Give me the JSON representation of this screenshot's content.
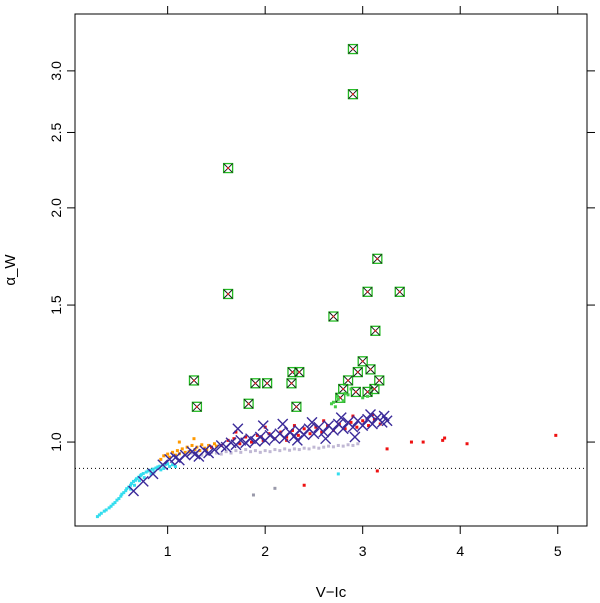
{
  "chart_data": {
    "type": "scatter",
    "title": "",
    "xlabel": "V−Ic",
    "ylabel": "α_W",
    "xlim": [
      0.05,
      5.3
    ],
    "ylim": [
      0.78,
      3.55
    ],
    "y_scale": "log",
    "x_ticks": [
      1,
      2,
      3,
      4,
      5
    ],
    "x_tick_labels": [
      "1",
      "2",
      "3",
      "4",
      "5"
    ],
    "y_ticks": [
      1.0,
      1.5,
      2.0,
      2.5,
      3.0
    ],
    "y_tick_labels": [
      "1.0",
      "1.5",
      "2.0",
      "2.5",
      "3.0"
    ],
    "reference_line": {
      "y": 0.925,
      "style": "dotted"
    },
    "grid": false,
    "legend": "none",
    "series": [
      {
        "color": "#33ddee",
        "marker": "small-square",
        "points": [
          [
            0.28,
            0.802
          ],
          [
            0.3,
            0.806
          ],
          [
            0.32,
            0.81
          ],
          [
            0.35,
            0.815
          ],
          [
            0.37,
            0.818
          ],
          [
            0.4,
            0.823
          ],
          [
            0.42,
            0.827
          ],
          [
            0.44,
            0.832
          ],
          [
            0.46,
            0.836
          ],
          [
            0.48,
            0.842
          ],
          [
            0.5,
            0.846
          ],
          [
            0.52,
            0.852
          ],
          [
            0.53,
            0.857
          ],
          [
            0.55,
            0.861
          ],
          [
            0.57,
            0.866
          ],
          [
            0.58,
            0.871
          ],
          [
            0.6,
            0.875
          ],
          [
            0.62,
            0.88
          ],
          [
            0.63,
            0.885
          ],
          [
            0.65,
            0.89
          ],
          [
            0.67,
            0.893
          ],
          [
            0.68,
            0.897
          ],
          [
            0.7,
            0.901
          ],
          [
            0.72,
            0.905
          ],
          [
            0.73,
            0.908
          ],
          [
            0.75,
            0.911
          ],
          [
            0.78,
            0.915
          ],
          [
            0.8,
            0.918
          ],
          [
            0.82,
            0.92
          ],
          [
            0.85,
            0.923
          ],
          [
            0.88,
            0.926
          ],
          [
            0.9,
            0.929
          ],
          [
            0.92,
            0.931
          ],
          [
            0.95,
            0.934
          ],
          [
            0.98,
            0.936
          ],
          [
            1.0,
            0.938
          ],
          [
            0.62,
            0.87
          ],
          [
            0.66,
            0.88
          ],
          [
            0.71,
            0.892
          ],
          [
            0.76,
            0.9
          ],
          [
            0.83,
            0.91
          ],
          [
            0.86,
            0.915
          ],
          [
            0.93,
            0.921
          ],
          [
            0.96,
            0.925
          ],
          [
            1.02,
            0.93
          ],
          [
            1.05,
            0.935
          ],
          [
            1.08,
            0.93
          ],
          [
            2.75,
            0.91
          ]
        ]
      },
      {
        "color": "#ff9900",
        "marker": "small-square",
        "points": [
          [
            0.93,
            0.95
          ],
          [
            0.96,
            0.96
          ],
          [
            1.0,
            0.965
          ],
          [
            1.02,
            0.956
          ],
          [
            1.05,
            0.97
          ],
          [
            1.08,
            0.962
          ],
          [
            1.1,
            0.975
          ],
          [
            1.12,
            0.966
          ],
          [
            1.15,
            0.98
          ],
          [
            1.18,
            0.97
          ],
          [
            1.2,
            0.985
          ],
          [
            1.22,
            0.972
          ],
          [
            1.25,
            0.99
          ],
          [
            1.28,
            0.978
          ],
          [
            1.3,
            0.985
          ],
          [
            1.33,
            0.975
          ],
          [
            1.35,
            0.992
          ],
          [
            1.38,
            0.982
          ],
          [
            1.4,
            0.978
          ],
          [
            1.42,
            0.99
          ],
          [
            1.45,
            0.985
          ],
          [
            1.48,
            0.995
          ],
          [
            1.5,
            0.988
          ],
          [
            1.27,
            1.01
          ],
          [
            1.12,
            1.0
          ]
        ]
      },
      {
        "color": "#c0b8d4",
        "marker": "small-square",
        "points": [
          [
            1.2,
            0.965
          ],
          [
            1.25,
            0.968
          ],
          [
            1.3,
            0.97
          ],
          [
            1.35,
            0.962
          ],
          [
            1.4,
            0.965
          ],
          [
            1.45,
            0.97
          ],
          [
            1.5,
            0.968
          ],
          [
            1.55,
            0.965
          ],
          [
            1.6,
            0.972
          ],
          [
            1.65,
            0.968
          ],
          [
            1.7,
            0.975
          ],
          [
            1.75,
            0.97
          ],
          [
            1.8,
            0.978
          ],
          [
            1.85,
            0.972
          ],
          [
            1.9,
            0.975
          ],
          [
            1.95,
            0.97
          ],
          [
            2.0,
            0.975
          ],
          [
            2.05,
            0.972
          ],
          [
            2.1,
            0.978
          ],
          [
            2.15,
            0.975
          ],
          [
            2.2,
            0.98
          ],
          [
            2.25,
            0.976
          ],
          [
            2.3,
            0.98
          ],
          [
            2.35,
            0.978
          ],
          [
            2.4,
            0.982
          ],
          [
            2.45,
            0.98
          ],
          [
            2.5,
            0.985
          ],
          [
            2.55,
            0.982
          ],
          [
            2.6,
            0.985
          ],
          [
            2.65,
            0.988
          ],
          [
            2.7,
            0.986
          ],
          [
            2.75,
            0.99
          ],
          [
            2.8,
            0.988
          ],
          [
            2.85,
            0.992
          ],
          [
            2.9,
            0.99
          ],
          [
            2.95,
            0.995
          ]
        ]
      },
      {
        "color": "#ee1111",
        "marker": "small-square",
        "points": [
          [
            1.55,
            0.99
          ],
          [
            1.62,
            1.005
          ],
          [
            1.68,
            1.01
          ],
          [
            1.74,
            0.995
          ],
          [
            1.8,
            1.015
          ],
          [
            1.86,
            1.0
          ],
          [
            1.92,
            1.02
          ],
          [
            1.98,
            1.005
          ],
          [
            2.04,
            1.025
          ],
          [
            2.1,
            1.01
          ],
          [
            2.16,
            1.03
          ],
          [
            2.22,
            1.015
          ],
          [
            2.28,
            1.035
          ],
          [
            2.34,
            1.02
          ],
          [
            2.4,
            1.04
          ],
          [
            2.46,
            1.025
          ],
          [
            2.52,
            1.045
          ],
          [
            2.58,
            1.03
          ],
          [
            2.64,
            1.05
          ],
          [
            2.7,
            1.035
          ],
          [
            2.76,
            1.055
          ],
          [
            2.82,
            1.04
          ],
          [
            2.88,
            1.06
          ],
          [
            2.94,
            1.045
          ],
          [
            3.0,
            1.065
          ],
          [
            3.06,
            1.05
          ],
          [
            3.12,
            1.07
          ],
          [
            3.18,
            1.055
          ],
          [
            1.7,
            1.03
          ],
          [
            2.0,
            1.045
          ],
          [
            2.3,
            1.05
          ],
          [
            2.6,
            1.065
          ],
          [
            2.9,
            1.08
          ],
          [
            3.1,
            1.085
          ],
          [
            1.45,
            0.985
          ],
          [
            3.25,
            0.98
          ],
          [
            3.5,
            1.0
          ],
          [
            3.62,
            1.0
          ],
          [
            3.82,
            1.005
          ],
          [
            3.84,
            1.012
          ],
          [
            4.07,
            0.995
          ],
          [
            4.98,
            1.02
          ],
          [
            2.4,
            0.88
          ],
          [
            3.15,
            0.918
          ],
          [
            1.96,
            1.015
          ],
          [
            2.22,
            1.005
          ]
        ]
      },
      {
        "color": "#9999aa",
        "marker": "small-square",
        "points": [
          [
            1.88,
            0.855
          ],
          [
            2.1,
            0.872
          ]
        ]
      },
      {
        "color": "#3a2a99",
        "marker": "x",
        "points": [
          [
            0.65,
            0.865
          ],
          [
            0.75,
            0.89
          ],
          [
            0.85,
            0.91
          ],
          [
            0.95,
            0.935
          ],
          [
            1.02,
            0.95
          ],
          [
            1.08,
            0.955
          ],
          [
            1.12,
            0.948
          ],
          [
            1.18,
            0.962
          ],
          [
            1.25,
            0.972
          ],
          [
            1.28,
            0.965
          ],
          [
            1.32,
            0.958
          ],
          [
            1.38,
            0.975
          ],
          [
            1.42,
            0.968
          ],
          [
            1.48,
            0.978
          ],
          [
            1.55,
            0.99
          ],
          [
            1.6,
            0.985
          ],
          [
            1.65,
            0.998
          ],
          [
            1.7,
            0.992
          ],
          [
            1.75,
            1.005
          ],
          [
            1.8,
            0.998
          ],
          [
            1.85,
            1.01
          ],
          [
            1.9,
            1.002
          ],
          [
            1.95,
            1.015
          ],
          [
            2.0,
            1.005
          ],
          [
            2.05,
            1.02
          ],
          [
            2.1,
            1.01
          ],
          [
            2.15,
            1.025
          ],
          [
            2.2,
            1.012
          ],
          [
            2.25,
            1.03
          ],
          [
            2.3,
            1.018
          ],
          [
            2.35,
            1.035
          ],
          [
            2.4,
            1.022
          ],
          [
            2.45,
            1.04
          ],
          [
            2.5,
            1.025
          ],
          [
            2.55,
            1.045
          ],
          [
            2.6,
            1.03
          ],
          [
            2.65,
            1.05
          ],
          [
            2.7,
            1.035
          ],
          [
            2.75,
            1.055
          ],
          [
            2.8,
            1.04
          ],
          [
            2.85,
            1.06
          ],
          [
            2.9,
            1.045
          ],
          [
            2.95,
            1.065
          ],
          [
            3.0,
            1.05
          ],
          [
            3.05,
            1.07
          ],
          [
            3.1,
            1.055
          ],
          [
            3.15,
            1.075
          ],
          [
            3.2,
            1.06
          ],
          [
            3.25,
            1.065
          ],
          [
            1.72,
            1.04
          ],
          [
            1.98,
            1.05
          ],
          [
            2.18,
            1.055
          ],
          [
            2.48,
            1.06
          ],
          [
            2.78,
            1.075
          ],
          [
            3.08,
            1.085
          ],
          [
            3.22,
            1.08
          ],
          [
            2.33,
            1.005
          ],
          [
            2.62,
            1.01
          ],
          [
            2.92,
            1.015
          ]
        ]
      },
      {
        "color": "#22bb22",
        "marker": "square-x",
        "points": [
          [
            2.9,
            3.2
          ],
          [
            2.9,
            2.8
          ],
          [
            1.62,
            2.25
          ],
          [
            1.62,
            1.55
          ],
          [
            3.15,
            1.72
          ],
          [
            3.05,
            1.56
          ],
          [
            3.38,
            1.56
          ],
          [
            2.7,
            1.45
          ],
          [
            3.13,
            1.39
          ],
          [
            3.0,
            1.27
          ],
          [
            1.27,
            1.2
          ],
          [
            1.3,
            1.11
          ],
          [
            1.9,
            1.19
          ],
          [
            2.02,
            1.19
          ],
          [
            2.28,
            1.23
          ],
          [
            2.35,
            1.23
          ],
          [
            2.27,
            1.19
          ],
          [
            1.83,
            1.12
          ],
          [
            2.32,
            1.11
          ],
          [
            2.85,
            1.2
          ],
          [
            2.95,
            1.23
          ],
          [
            3.08,
            1.24
          ],
          [
            2.93,
            1.16
          ],
          [
            3.05,
            1.16
          ],
          [
            3.12,
            1.17
          ],
          [
            3.17,
            1.2
          ],
          [
            2.8,
            1.17
          ],
          [
            2.77,
            1.14
          ]
        ]
      },
      {
        "color": "#44cc44",
        "marker": "small-square",
        "points": [
          [
            2.7,
            1.125
          ],
          [
            2.75,
            1.135
          ],
          [
            2.8,
            1.13
          ],
          [
            2.74,
            1.145
          ],
          [
            2.68,
            1.12
          ],
          [
            2.85,
            1.15
          ],
          [
            3.0,
            1.14
          ],
          [
            3.05,
            1.145
          ],
          [
            2.88,
            1.17
          ],
          [
            2.82,
            1.155
          ],
          [
            2.72,
            1.11
          ]
        ]
      }
    ]
  }
}
